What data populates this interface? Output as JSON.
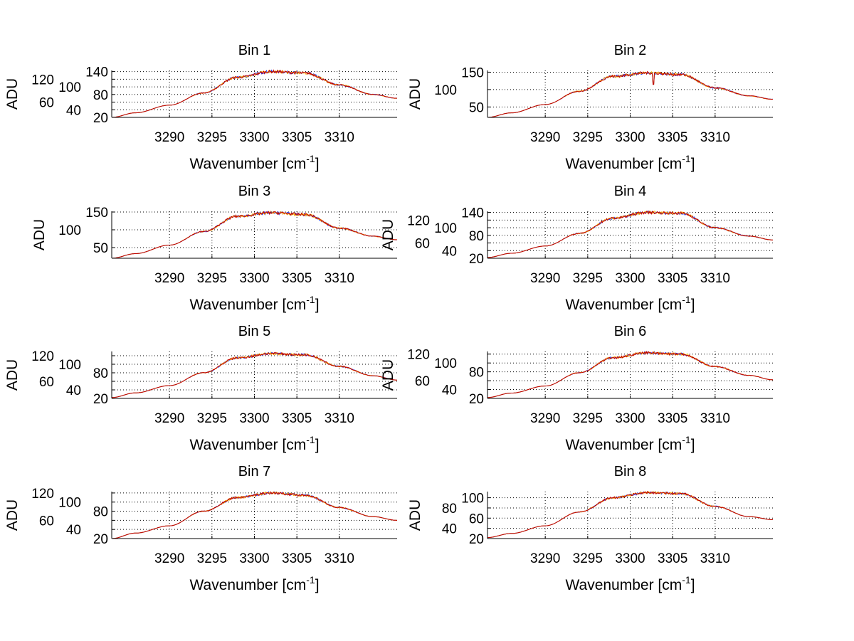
{
  "chart_data": {
    "type": "line",
    "xlim": [
      3283.2,
      3316.8
    ],
    "xticks": [
      3290,
      3295,
      3300,
      3305,
      3310
    ],
    "xlabel": "Wavenumber [cm",
    "xlabel_sup": "-1",
    "xlabel_close": "]",
    "ylabel": "ADU",
    "grid": true,
    "series_colors": [
      "#2040ff",
      "#ffb000",
      "#c00000"
    ],
    "anchor_x": [
      3283.2,
      3286,
      3290,
      3294,
      3298,
      3302,
      3306,
      3310,
      3314,
      3316.8
    ],
    "subplots": [
      {
        "title": "Bin 1",
        "ylim": [
          20,
          143
        ],
        "yticks": [
          20,
          40,
          60,
          80,
          100,
          120,
          140
        ],
        "values": [
          20,
          32,
          52,
          84,
          125,
          140,
          136,
          105,
          80,
          70
        ]
      },
      {
        "title": "Bin 2",
        "ylim": [
          20,
          155
        ],
        "yticks": [
          50,
          100,
          150
        ],
        "values": [
          20,
          33,
          57,
          95,
          138,
          148,
          143,
          105,
          82,
          72
        ],
        "dip": {
          "x": 3302.7,
          "y": 115
        }
      },
      {
        "title": "Bin 3",
        "ylim": [
          20,
          152
        ],
        "yticks": [
          50,
          100,
          150
        ],
        "values": [
          20,
          33,
          57,
          95,
          138,
          148,
          143,
          105,
          82,
          72
        ]
      },
      {
        "title": "Bin 4",
        "ylim": [
          20,
          143
        ],
        "yticks": [
          20,
          40,
          60,
          80,
          100,
          120,
          140
        ],
        "values": [
          22,
          33,
          52,
          85,
          125,
          140,
          138,
          100,
          78,
          68
        ]
      },
      {
        "title": "Bin 5",
        "ylim": [
          20,
          130
        ],
        "yticks": [
          20,
          40,
          60,
          80,
          100,
          120
        ],
        "values": [
          22,
          33,
          50,
          80,
          115,
          125,
          122,
          95,
          73,
          63
        ]
      },
      {
        "title": "Bin 6",
        "ylim": [
          20,
          126
        ],
        "yticks": [
          20,
          40,
          60,
          80,
          100,
          120
        ],
        "values": [
          22,
          32,
          48,
          78,
          112,
          123,
          120,
          92,
          72,
          62
        ]
      },
      {
        "title": "Bin 7",
        "ylim": [
          20,
          123
        ],
        "yticks": [
          20,
          40,
          60,
          80,
          100,
          120
        ],
        "values": [
          20,
          32,
          48,
          80,
          110,
          120,
          115,
          88,
          68,
          60
        ]
      },
      {
        "title": "Bin 8",
        "ylim": [
          20,
          112
        ],
        "yticks": [
          20,
          40,
          60,
          80,
          100
        ],
        "values": [
          22,
          30,
          45,
          72,
          100,
          110,
          108,
          83,
          63,
          57
        ]
      }
    ]
  }
}
